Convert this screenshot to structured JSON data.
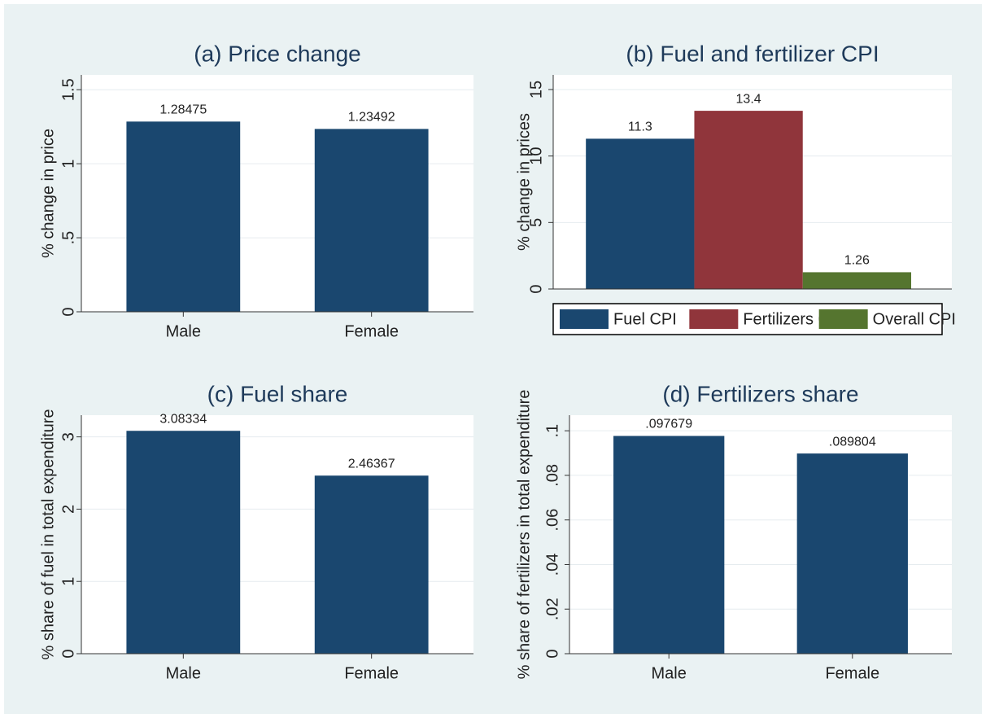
{
  "chart_data": [
    {
      "type": "bar",
      "title": "(a) Price change",
      "y_label": "% change in price",
      "categories": [
        "Male",
        "Female"
      ],
      "values": [
        1.28475,
        1.23492
      ],
      "color": "#1a476f",
      "ylim": [
        0,
        1.6
      ],
      "yticks": [
        0,
        {
          "value": 0.5,
          "label": ".5"
        },
        1,
        1.5
      ],
      "grid": true
    },
    {
      "type": "grouped-bar",
      "title": "(b) Fuel and fertilizer CPI",
      "y_label": "% change in prices",
      "series": [
        {
          "name": "Fuel CPI",
          "color": "#1a476f",
          "values": [
            11.3
          ]
        },
        {
          "name": "Fertilizers CPI",
          "color": "#90353b",
          "values": [
            13.4
          ]
        },
        {
          "name": "Overall CPI",
          "color": "#55752f",
          "values": [
            1.26
          ]
        }
      ],
      "ylim": [
        0,
        16.1
      ],
      "yticks": [
        0,
        5,
        10,
        15
      ],
      "grid": true,
      "legend": "bottom"
    },
    {
      "type": "bar",
      "title": "(c) Fuel share",
      "y_label": "% share of fuel in total expenditure",
      "categories": [
        "Male",
        "Female"
      ],
      "values": [
        3.08334,
        2.46367
      ],
      "color": "#1a476f",
      "ylim": [
        0,
        3.3
      ],
      "yticks": [
        0,
        1,
        2,
        3
      ],
      "grid": true
    },
    {
      "type": "bar",
      "title": "(d) Fertilizers share",
      "y_label": "% share of fertilizers in total expenditure",
      "categories": [
        "Male",
        "Female"
      ],
      "values": [
        0.097679,
        0.089804
      ],
      "value_labels": [
        ".097679",
        ".089804"
      ],
      "color": "#1a476f",
      "ylim": [
        0,
        0.107
      ],
      "yticks": [
        0,
        {
          "value": 0.02,
          "label": ".02"
        },
        {
          "value": 0.04,
          "label": ".04"
        },
        {
          "value": 0.06,
          "label": ".06"
        },
        {
          "value": 0.08,
          "label": ".08"
        },
        {
          "value": 0.1,
          "label": ".1"
        }
      ],
      "grid": true
    }
  ]
}
